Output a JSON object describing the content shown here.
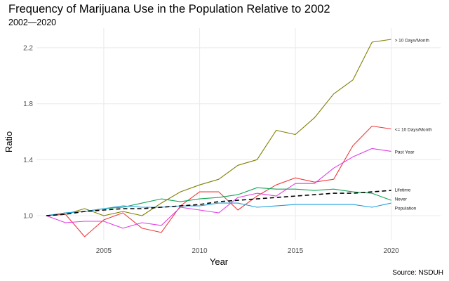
{
  "chart_data": {
    "type": "line",
    "title": "Frequency of Marijuana Use in the Population Relative to 2002",
    "subtitle": "2002—2020",
    "xlabel": "Year",
    "ylabel": "Ratio",
    "caption": "Source: NSDUH",
    "xlim": [
      2001.6,
      2022.5
    ],
    "ylim": [
      0.81,
      2.31
    ],
    "x_ticks": [
      2005,
      2010,
      2015,
      2020
    ],
    "x_tick_labels": [
      "2005",
      "2010",
      "2015",
      "2020"
    ],
    "y_ticks": [
      1.0,
      1.4,
      1.8,
      2.2
    ],
    "y_tick_labels": [
      "1.0",
      "1.4",
      "1.8",
      "2.2"
    ],
    "grid": true,
    "legend": "direct labels at line ends (right)",
    "x": [
      2002,
      2003,
      2004,
      2005,
      2006,
      2007,
      2008,
      2009,
      2010,
      2011,
      2012,
      2013,
      2014,
      2015,
      2016,
      2017,
      2018,
      2019,
      2020
    ],
    "series": [
      {
        "name": "> 10 Days/Month",
        "color": "#7f7f00",
        "dashed": false,
        "values": [
          1.0,
          1.01,
          1.05,
          1.0,
          1.03,
          1.0,
          1.09,
          1.17,
          1.22,
          1.26,
          1.36,
          1.4,
          1.61,
          1.58,
          1.7,
          1.87,
          1.97,
          2.24,
          2.26
        ]
      },
      {
        "name": "<= 10 Days/Month",
        "color": "#f0393b",
        "dashed": false,
        "values": [
          1.0,
          1.01,
          0.85,
          0.97,
          1.02,
          0.91,
          0.88,
          1.07,
          1.17,
          1.17,
          1.04,
          1.14,
          1.22,
          1.27,
          1.24,
          1.26,
          1.5,
          1.64,
          1.62
        ]
      },
      {
        "name": "Past Year",
        "color": "#e03de6",
        "dashed": false,
        "values": [
          1.0,
          0.95,
          0.96,
          0.96,
          0.91,
          0.95,
          0.93,
          1.06,
          1.04,
          1.02,
          1.13,
          1.16,
          1.14,
          1.23,
          1.23,
          1.34,
          1.42,
          1.48,
          1.46
        ]
      },
      {
        "name": "Lifetime",
        "color": "#10a455",
        "dashed": false,
        "values": [
          1.0,
          1.02,
          1.03,
          1.05,
          1.06,
          1.09,
          1.12,
          1.1,
          1.12,
          1.13,
          1.15,
          1.2,
          1.19,
          1.19,
          1.18,
          1.19,
          1.17,
          1.16,
          1.11
        ]
      },
      {
        "name": "Never",
        "color": "#1f9fdc",
        "dashed": false,
        "values": [
          1.0,
          1.02,
          1.03,
          1.05,
          1.07,
          1.06,
          1.06,
          1.07,
          1.07,
          1.09,
          1.09,
          1.06,
          1.07,
          1.08,
          1.08,
          1.08,
          1.08,
          1.06,
          1.09
        ]
      },
      {
        "name": "Population",
        "color": "#000000",
        "dashed": true,
        "values": [
          1.0,
          1.01,
          1.03,
          1.04,
          1.05,
          1.05,
          1.06,
          1.07,
          1.08,
          1.1,
          1.11,
          1.12,
          1.13,
          1.14,
          1.15,
          1.16,
          1.16,
          1.17,
          1.18
        ]
      }
    ]
  }
}
